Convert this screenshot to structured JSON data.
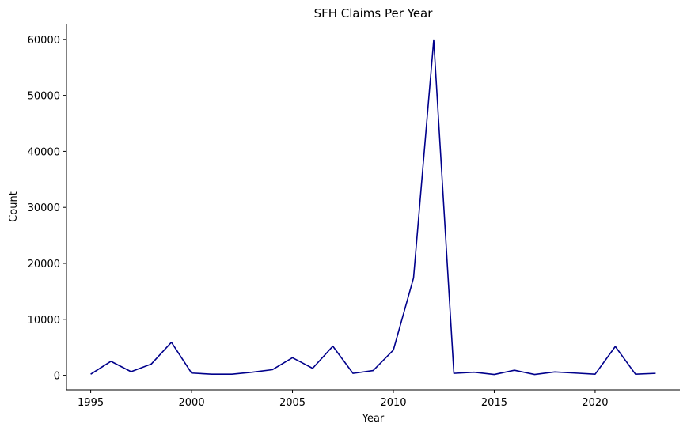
{
  "chart_data": {
    "type": "line",
    "title": "SFH Claims Per Year",
    "xlabel": "Year",
    "ylabel": "Count",
    "xlim": [
      1993.8,
      2024.2
    ],
    "ylim": [
      -2600,
      62800
    ],
    "xticks": [
      1995,
      2000,
      2005,
      2010,
      2015,
      2020
    ],
    "yticks": [
      0,
      10000,
      20000,
      30000,
      40000,
      50000,
      60000
    ],
    "grid": false,
    "color": "#00008b",
    "series": [
      {
        "x": [
          1995,
          1996,
          1997,
          1998,
          1999,
          2000,
          2001,
          2002,
          2003,
          2004,
          2005,
          2006,
          2007,
          2008,
          2009,
          2010,
          2011,
          2012,
          2013,
          2014,
          2015,
          2016,
          2017,
          2018,
          2019,
          2020,
          2021,
          2022,
          2023
        ],
        "values": [
          200,
          2500,
          650,
          2000,
          5900,
          400,
          200,
          200,
          550,
          1000,
          3150,
          1250,
          5200,
          350,
          850,
          4500,
          17400,
          59900,
          350,
          550,
          150,
          900,
          150,
          600,
          400,
          200,
          5150,
          200,
          350
        ]
      }
    ]
  }
}
